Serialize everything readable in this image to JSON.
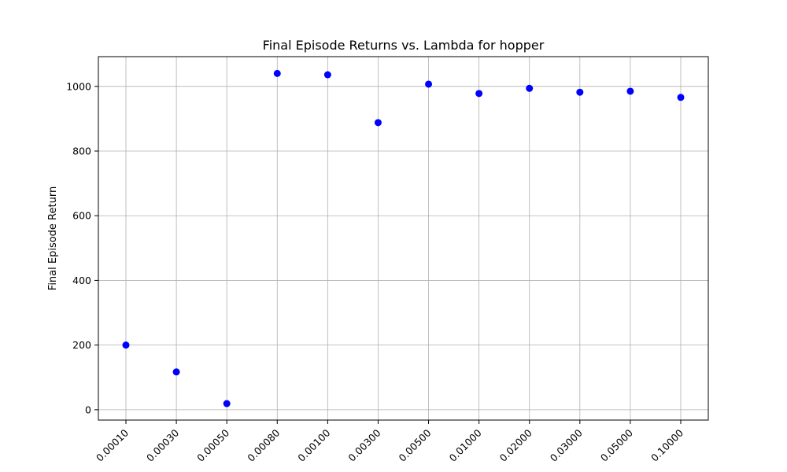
{
  "chart_data": {
    "type": "scatter",
    "title": "Final Episode Returns vs. Lambda for hopper",
    "xlabel": "",
    "ylabel": "Final Episode Return",
    "categories": [
      "0.00010",
      "0.00030",
      "0.00050",
      "0.00080",
      "0.00100",
      "0.00300",
      "0.00500",
      "0.01000",
      "0.02000",
      "0.03000",
      "0.05000",
      "0.10000"
    ],
    "values": [
      200,
      117,
      19,
      1040,
      1036,
      888,
      1007,
      978,
      994,
      982,
      985,
      966
    ],
    "yticks": [
      0,
      200,
      400,
      600,
      800,
      1000
    ],
    "ylim": [
      -32,
      1092
    ],
    "grid": true,
    "point_color": "#0000ff"
  }
}
